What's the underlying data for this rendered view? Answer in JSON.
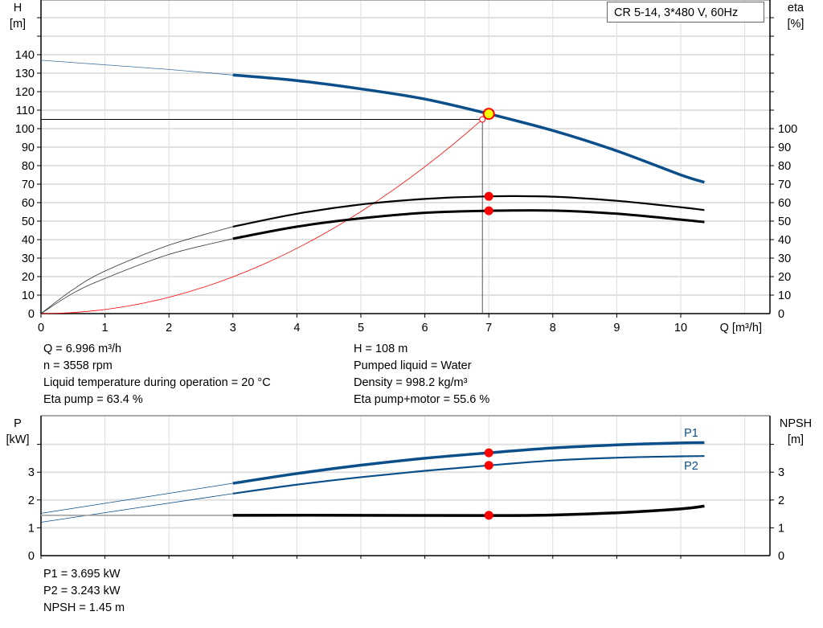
{
  "chart_data": [
    {
      "type": "line",
      "legend": "CR 5-14, 3*480 V, 60Hz",
      "legend_placement": "top-right",
      "xlabel": "Q [m³/h]",
      "ylabel_left": [
        "H",
        "[m]"
      ],
      "ylabel_right": [
        "eta",
        "[%]"
      ],
      "xlim": [
        0,
        11.4
      ],
      "ylim": [
        0,
        170
      ],
      "x_ticks": [
        0,
        1,
        2,
        3,
        4,
        5,
        6,
        7,
        8,
        9,
        10
      ],
      "y_ticks_left": [
        0,
        10,
        20,
        30,
        40,
        50,
        60,
        70,
        80,
        90,
        100,
        110,
        120,
        130,
        140
      ],
      "y_ticks_right": [
        0,
        10,
        20,
        30,
        40,
        50,
        60,
        70,
        80,
        90,
        100
      ],
      "grid": true,
      "series": [
        {
          "id": "H",
          "color": "#0b4f8a",
          "extrapolated": [
            [
              0,
              137
            ],
            [
              1,
              134.5
            ],
            [
              2,
              132
            ],
            [
              3,
              129
            ]
          ],
          "values": [
            [
              3,
              129
            ],
            [
              4,
              126
            ],
            [
              5,
              121.5
            ],
            [
              6,
              116
            ],
            [
              7,
              108
            ],
            [
              8,
              99
            ],
            [
              9,
              88
            ],
            [
              10,
              75
            ],
            [
              10.37,
              71
            ]
          ]
        },
        {
          "id": "eta_pump",
          "color": "#000000",
          "extrapolated": [
            [
              0,
              0
            ],
            [
              0.5,
              13
            ],
            [
              1,
              23
            ],
            [
              2,
              37
            ],
            [
              3,
              47
            ]
          ],
          "values": [
            [
              3,
              47
            ],
            [
              4,
              54
            ],
            [
              5,
              59
            ],
            [
              6,
              62
            ],
            [
              7,
              63.4
            ],
            [
              8,
              63.2
            ],
            [
              9,
              61
            ],
            [
              10,
              57.5
            ],
            [
              10.37,
              56
            ]
          ]
        },
        {
          "id": "eta_pump_motor",
          "color": "#000000",
          "extrapolated": [
            [
              0,
              0
            ],
            [
              0.5,
              11
            ],
            [
              1,
              19
            ],
            [
              2,
              32
            ],
            [
              3,
              40.5
            ]
          ],
          "values": [
            [
              3,
              40.5
            ],
            [
              4,
              47
            ],
            [
              5,
              51.5
            ],
            [
              6,
              54.5
            ],
            [
              7,
              55.6
            ],
            [
              8,
              55.7
            ],
            [
              9,
              54
            ],
            [
              10,
              50.8
            ],
            [
              10.37,
              49.5
            ]
          ]
        },
        {
          "id": "system_curve",
          "color": "#ff0000",
          "k_setpoint": [
            6.9,
            105
          ]
        }
      ],
      "duty_point": {
        "Q": 7,
        "H": 108,
        "color": "#ffff00"
      },
      "setpoint": {
        "Q": 6.9,
        "H": 105
      },
      "markers": [
        [
          7,
          63.4
        ],
        [
          7,
          55.6
        ]
      ]
    },
    {
      "type": "line",
      "ylabel_left": [
        "P",
        "[kW]"
      ],
      "ylabel_right": [
        "NPSH",
        "[m]"
      ],
      "xlim": [
        0,
        11.4
      ],
      "ylim": [
        0,
        5
      ],
      "y_ticks": [
        0,
        1,
        2,
        3
      ],
      "grid": true,
      "series": [
        {
          "name": "P1",
          "color": "#0b4f8a",
          "extrapolated": [
            [
              0,
              1.52
            ],
            [
              3,
              2.6
            ]
          ],
          "values": [
            [
              3,
              2.6
            ],
            [
              4,
              2.95
            ],
            [
              5,
              3.25
            ],
            [
              6,
              3.5
            ],
            [
              7,
              3.695
            ],
            [
              8,
              3.87
            ],
            [
              9,
              3.98
            ],
            [
              10,
              4.05
            ],
            [
              10.37,
              4.06
            ]
          ]
        },
        {
          "name": "P2",
          "color": "#0b4f8a",
          "extrapolated": [
            [
              0,
              1.2
            ],
            [
              3,
              2.23
            ]
          ],
          "values": [
            [
              3,
              2.23
            ],
            [
              4,
              2.55
            ],
            [
              5,
              2.82
            ],
            [
              6,
              3.05
            ],
            [
              7,
              3.243
            ],
            [
              8,
              3.42
            ],
            [
              9,
              3.52
            ],
            [
              10,
              3.57
            ],
            [
              10.37,
              3.58
            ]
          ]
        },
        {
          "id": "NPSH",
          "color": "#000000",
          "extrapolated": [
            [
              0,
              1.45
            ],
            [
              3,
              1.45
            ]
          ],
          "values": [
            [
              3,
              1.45
            ],
            [
              5,
              1.45
            ],
            [
              7,
              1.44
            ],
            [
              8,
              1.46
            ],
            [
              9,
              1.54
            ],
            [
              10,
              1.68
            ],
            [
              10.37,
              1.78
            ]
          ]
        }
      ],
      "markers": [
        [
          7,
          3.695
        ],
        [
          7,
          3.243
        ],
        [
          7,
          1.45
        ]
      ]
    }
  ],
  "info_top_left": [
    "Q = 6.996 m³/h",
    "n = 3558 rpm",
    "Liquid temperature during operation = 20 °C",
    "Eta pump = 63.4 %"
  ],
  "info_top_right": [
    "H = 108 m",
    "Pumped liquid = Water",
    "Density = 998.2 kg/m³",
    "Eta pump+motor = 55.6 %"
  ],
  "info_bottom": [
    "P1 = 3.695 kW",
    "P2 = 3.243 kW",
    "NPSH = 1.45 m"
  ]
}
